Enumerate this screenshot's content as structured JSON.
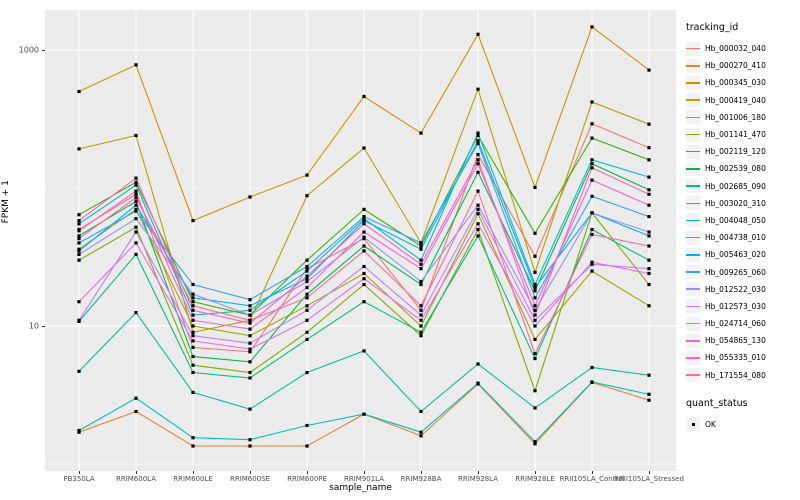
{
  "figure": {
    "panel_bg": "#EBEBEB",
    "grid_color": "#FFFFFF",
    "point_color": "#000000",
    "tick_text_color": "#4D4D4D"
  },
  "y_axis": {
    "title": "FPKM + 1",
    "ticks": [
      {
        "label": "1000",
        "value": 1000
      },
      {
        "label": "10",
        "value": 10
      }
    ]
  },
  "x_axis": {
    "title": "sample_name"
  },
  "legend": {
    "tracking_title": "tracking_id",
    "quant_title": "quant_status",
    "quant_items": [
      {
        "label": "OK",
        "shape": "filled-square"
      }
    ]
  },
  "chart_data": {
    "type": "line",
    "title": "",
    "xlabel": "sample_name",
    "ylabel": "FPKM + 1",
    "y_scale": "log10",
    "ylim": [
      0.87,
      1800
    ],
    "y_major_breaks": [
      10,
      1000
    ],
    "y_minor_breaks": [
      1,
      100
    ],
    "grid": true,
    "legend_position": "right",
    "point_shape": "filled-square",
    "categories": [
      "PB350LA",
      "RRIM600LA",
      "RRIM600LE",
      "RRIM600SE",
      "RRIM600PE",
      "RRIM901LA",
      "RRIM928BA",
      "RRIM928LA",
      "RRIM928LE",
      "RRII105LA_Control",
      "RRII105LA_Stressed"
    ],
    "series": [
      {
        "name": "Hb_000032_040",
        "color": "#F8766D",
        "values": [
          49,
          95,
          7,
          6.5,
          26,
          43,
          13,
          175,
          32,
          292,
          196
        ]
      },
      {
        "name": "Hb_000270_410",
        "color": "#EA8331",
        "values": [
          1.7,
          2.4,
          1.35,
          1.35,
          1.35,
          2.3,
          1.6,
          3.8,
          1.4,
          3.9,
          2.9
        ]
      },
      {
        "name": "Hb_000345_030",
        "color": "#D89000",
        "values": [
          500,
          780,
          58,
          86,
          124,
          460,
          250,
          1300,
          101,
          1470,
          715
        ]
      },
      {
        "name": "Hb_000419_040",
        "color": "#C09B00",
        "values": [
          192,
          240,
          9,
          11,
          88,
          195,
          40,
          520,
          24.5,
          420,
          290
        ]
      },
      {
        "name": "Hb_001006_180",
        "color": "#A3A500",
        "values": [
          36,
          70,
          10,
          8.5,
          14,
          24,
          10,
          65,
          8,
          25,
          14
        ]
      },
      {
        "name": "Hb_001141_470",
        "color": "#7CAE00",
        "values": [
          30,
          52,
          5.2,
          4.6,
          9,
          20,
          8.5,
          50,
          3.4,
          66,
          20
        ]
      },
      {
        "name": "Hb_002119_120",
        "color": "#39B600",
        "values": [
          64,
          110,
          15,
          12,
          30,
          70,
          38,
          240,
          47,
          230,
          160
        ]
      },
      {
        "name": "Hb_002539_080",
        "color": "#00BB4E",
        "values": [
          45,
          80,
          6,
          5.5,
          17,
          38,
          20,
          130,
          18,
          150,
          97
        ]
      },
      {
        "name": "Hb_002685_090",
        "color": "#00BF7D",
        "values": [
          10.8,
          33,
          4.6,
          4.2,
          8,
          15,
          9,
          45,
          5.8,
          50,
          30
        ]
      },
      {
        "name": "Hb_003020_310",
        "color": "#00C1A3",
        "values": [
          4.7,
          12.5,
          3.3,
          2.5,
          4.6,
          6.6,
          2.4,
          5.3,
          2.55,
          5,
          4.4
        ]
      },
      {
        "name": "Hb_004048_050",
        "color": "#00BFC4",
        "values": [
          1.75,
          3,
          1.55,
          1.5,
          1.9,
          2.3,
          1.7,
          3.85,
          1.45,
          3.93,
          3.2
        ]
      },
      {
        "name": "Hb_004738_010",
        "color": "#00BAE0",
        "values": [
          55,
          105,
          12,
          13,
          25,
          60,
          30,
          250,
          20,
          160,
          120
        ]
      },
      {
        "name": "Hb_005463_020",
        "color": "#00B0F6",
        "values": [
          35,
          75,
          16,
          14,
          22,
          58,
          36,
          220,
          19,
          66,
          45
        ]
      },
      {
        "name": "Hb_009265_060",
        "color": "#35A2FF",
        "values": [
          40,
          68,
          20,
          15.5,
          27,
          62,
          40,
          210,
          16,
          87,
          62
        ]
      },
      {
        "name": "Hb_012522_030",
        "color": "#9590FF",
        "values": [
          33,
          60,
          17,
          12,
          21,
          44,
          21,
          75,
          13,
          66,
          48
        ]
      },
      {
        "name": "Hb_012573_030",
        "color": "#C77CFF",
        "values": [
          11,
          48,
          8.5,
          7.5,
          13,
          27,
          12,
          70,
          11,
          28,
          26
        ]
      },
      {
        "name": "Hb_024714_060",
        "color": "#E76BF3",
        "values": [
          15,
          40,
          7.8,
          6.8,
          11,
          22,
          11,
          55,
          10,
          29,
          24
        ]
      },
      {
        "name": "Hb_054865_130",
        "color": "#FA62DB",
        "values": [
          50,
          90,
          11,
          9.5,
          19,
          48,
          26,
          150,
          14,
          114,
          75
        ]
      },
      {
        "name": "Hb_055335_010",
        "color": "#FF62BC",
        "values": [
          58,
          118,
          13,
          10.5,
          23,
          55,
          28,
          160,
          12,
          140,
          90
        ]
      },
      {
        "name": "Hb_171554_080",
        "color": "#FF6A98",
        "values": [
          43,
          85,
          14,
          11,
          16,
          35,
          14,
          95,
          6.3,
          46,
          38
        ]
      }
    ]
  }
}
